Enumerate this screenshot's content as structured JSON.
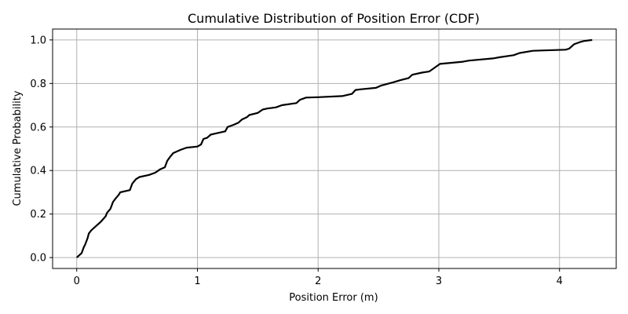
{
  "chart_data": {
    "type": "line",
    "title": "Cumulative Distribution of Position Error (CDF)",
    "xlabel": "Position Error (m)",
    "ylabel": "Cumulative Probability",
    "xlim": [
      -0.2,
      4.47
    ],
    "ylim": [
      -0.05,
      1.05
    ],
    "xticks": [
      0,
      1,
      2,
      3,
      4
    ],
    "yticks": [
      0.0,
      0.2,
      0.4,
      0.6,
      0.8,
      1.0
    ],
    "xtick_labels": [
      "0",
      "1",
      "2",
      "3",
      "4"
    ],
    "ytick_labels": [
      "0.0",
      "0.2",
      "0.4",
      "0.6",
      "0.8",
      "1.0"
    ],
    "grid": true,
    "line_color": "#000000",
    "grid_color": "#b0b0b0",
    "series": [
      {
        "x": [
          0.0,
          0.04,
          0.06,
          0.07,
          0.09,
          0.1,
          0.12,
          0.15,
          0.2,
          0.24,
          0.25,
          0.28,
          0.3,
          0.32,
          0.35,
          0.36,
          0.4,
          0.44,
          0.46,
          0.49,
          0.52,
          0.6,
          0.65,
          0.69,
          0.73,
          0.75,
          0.77,
          0.8,
          0.86,
          0.91,
          1.0,
          1.03,
          1.05,
          1.08,
          1.11,
          1.15,
          1.23,
          1.25,
          1.3,
          1.34,
          1.37,
          1.41,
          1.43,
          1.5,
          1.54,
          1.58,
          1.65,
          1.7,
          1.82,
          1.85,
          1.9,
          2.0,
          2.2,
          2.28,
          2.31,
          2.35,
          2.48,
          2.52,
          2.62,
          2.68,
          2.75,
          2.78,
          2.86,
          2.92,
          2.96,
          3.01,
          3.2,
          3.25,
          3.45,
          3.5,
          3.62,
          3.67,
          3.78,
          4.05,
          4.08,
          4.12,
          4.17,
          4.2,
          4.27
        ],
        "y": [
          0.0,
          0.02,
          0.05,
          0.06,
          0.09,
          0.11,
          0.125,
          0.14,
          0.165,
          0.19,
          0.205,
          0.225,
          0.255,
          0.27,
          0.29,
          0.3,
          0.305,
          0.31,
          0.34,
          0.36,
          0.37,
          0.38,
          0.39,
          0.405,
          0.415,
          0.445,
          0.46,
          0.48,
          0.495,
          0.505,
          0.51,
          0.52,
          0.545,
          0.55,
          0.565,
          0.57,
          0.58,
          0.6,
          0.61,
          0.62,
          0.635,
          0.645,
          0.655,
          0.665,
          0.68,
          0.685,
          0.69,
          0.7,
          0.71,
          0.725,
          0.735,
          0.737,
          0.742,
          0.752,
          0.77,
          0.773,
          0.78,
          0.79,
          0.805,
          0.815,
          0.825,
          0.84,
          0.85,
          0.855,
          0.87,
          0.89,
          0.9,
          0.905,
          0.915,
          0.92,
          0.93,
          0.94,
          0.95,
          0.955,
          0.96,
          0.98,
          0.99,
          0.995,
          1.0
        ]
      }
    ]
  }
}
